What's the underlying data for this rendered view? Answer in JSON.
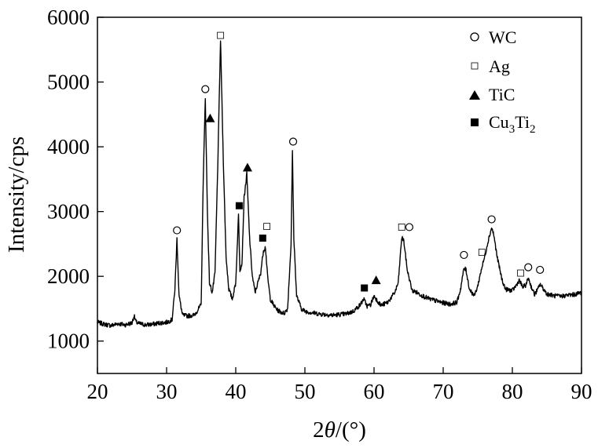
{
  "chart_data": {
    "type": "line",
    "title": "",
    "xlabel_prefix": "2",
    "xlabel_var": "θ",
    "xlabel_unit": "/(°)",
    "ylabel": "Intensity/cps",
    "xlim": [
      20,
      90
    ],
    "ylim": [
      500,
      6000
    ],
    "xticks": [
      20,
      30,
      40,
      50,
      60,
      70,
      80,
      90
    ],
    "yticks": [
      1000,
      2000,
      3000,
      4000,
      5000,
      6000
    ],
    "grid": false,
    "legend_position": "top-right",
    "legend": [
      {
        "key": "WC",
        "marker": "open-circle",
        "label": "WC"
      },
      {
        "key": "Ag",
        "marker": "open-square",
        "label": "Ag"
      },
      {
        "key": "TiC",
        "marker": "filled-triangle",
        "label": "TiC"
      },
      {
        "key": "Cu3Ti2",
        "marker": "filled-square",
        "label_parts": [
          "Cu",
          "3",
          "Ti",
          "2"
        ]
      }
    ],
    "series": [
      {
        "x": [
          20,
          21,
          22,
          23,
          24,
          25,
          25.3,
          25.6,
          26,
          27,
          28,
          29,
          30,
          30.8,
          31.2,
          31.5,
          31.8,
          32.3,
          33,
          34,
          35,
          35.3,
          35.6,
          35.9,
          36.2,
          36.6,
          37.0,
          37.4,
          37.8,
          38.2,
          38.6,
          39.0,
          39.5,
          40.0,
          40.4,
          40.6,
          40.9,
          41.2,
          41.6,
          42.0,
          42.4,
          42.8,
          43.2,
          43.6,
          44.0,
          44.3,
          44.6,
          45.0,
          45.5,
          46,
          46.5,
          47,
          47.5,
          48,
          48.2,
          48.4,
          48.8,
          49.5,
          50,
          52,
          54,
          56,
          57,
          58,
          58.5,
          59,
          59.5,
          60,
          60.3,
          61,
          62,
          63,
          63.5,
          64,
          64.3,
          64.8,
          65.5,
          66,
          67,
          68,
          69,
          70,
          71,
          72,
          72.5,
          73,
          73.3,
          73.8,
          74.5,
          75,
          75.5,
          76,
          76.5,
          77,
          77.3,
          77.8,
          78.5,
          79,
          80,
          80.5,
          81,
          81.5,
          82,
          82.3,
          82.7,
          83.2,
          83.7,
          84,
          84.4,
          85,
          86,
          87,
          88,
          89,
          90
        ],
        "y": [
          1290,
          1260,
          1240,
          1270,
          1250,
          1280,
          1390,
          1290,
          1270,
          1250,
          1260,
          1280,
          1290,
          1330,
          1800,
          2580,
          1700,
          1400,
          1390,
          1400,
          1560,
          3500,
          4750,
          3000,
          1900,
          1750,
          2050,
          3700,
          5650,
          3800,
          2300,
          1800,
          1650,
          1900,
          2950,
          2100,
          2200,
          3200,
          3580,
          2600,
          2000,
          1750,
          1900,
          2050,
          2400,
          2450,
          2000,
          1650,
          1550,
          1480,
          1450,
          1430,
          1500,
          2500,
          3930,
          2600,
          1700,
          1500,
          1460,
          1420,
          1400,
          1420,
          1460,
          1560,
          1650,
          1540,
          1560,
          1700,
          1650,
          1550,
          1600,
          1750,
          1900,
          2600,
          2550,
          2100,
          1780,
          1760,
          1700,
          1650,
          1620,
          1590,
          1570,
          1600,
          1800,
          2120,
          2100,
          1800,
          1700,
          1850,
          2100,
          2300,
          2550,
          2750,
          2650,
          2300,
          1950,
          1800,
          1780,
          1850,
          1940,
          1830,
          1870,
          1980,
          1850,
          1720,
          1800,
          1880,
          1820,
          1730,
          1700,
          1690,
          1710,
          1720,
          1750
        ]
      }
    ],
    "annotations": [
      {
        "marker": "open-circle",
        "x": 31.5,
        "y": 2710
      },
      {
        "marker": "open-circle",
        "x": 35.6,
        "y": 4890
      },
      {
        "marker": "filled-triangle",
        "x": 36.3,
        "y": 4440
      },
      {
        "marker": "open-square",
        "x": 37.8,
        "y": 5720
      },
      {
        "marker": "filled-square",
        "x": 40.5,
        "y": 3090
      },
      {
        "marker": "filled-triangle",
        "x": 41.7,
        "y": 3680
      },
      {
        "marker": "filled-square",
        "x": 43.9,
        "y": 2590
      },
      {
        "marker": "open-square",
        "x": 44.5,
        "y": 2770
      },
      {
        "marker": "open-circle",
        "x": 48.3,
        "y": 4080
      },
      {
        "marker": "filled-square",
        "x": 58.6,
        "y": 1820
      },
      {
        "marker": "filled-triangle",
        "x": 60.3,
        "y": 1940
      },
      {
        "marker": "open-square",
        "x": 64.0,
        "y": 2760
      },
      {
        "marker": "open-circle",
        "x": 65.1,
        "y": 2760
      },
      {
        "marker": "open-circle",
        "x": 73.0,
        "y": 2330
      },
      {
        "marker": "open-square",
        "x": 75.6,
        "y": 2370
      },
      {
        "marker": "open-circle",
        "x": 77.0,
        "y": 2880
      },
      {
        "marker": "open-square",
        "x": 81.2,
        "y": 2050
      },
      {
        "marker": "open-circle",
        "x": 82.3,
        "y": 2140
      },
      {
        "marker": "open-circle",
        "x": 84.0,
        "y": 2100
      }
    ]
  }
}
